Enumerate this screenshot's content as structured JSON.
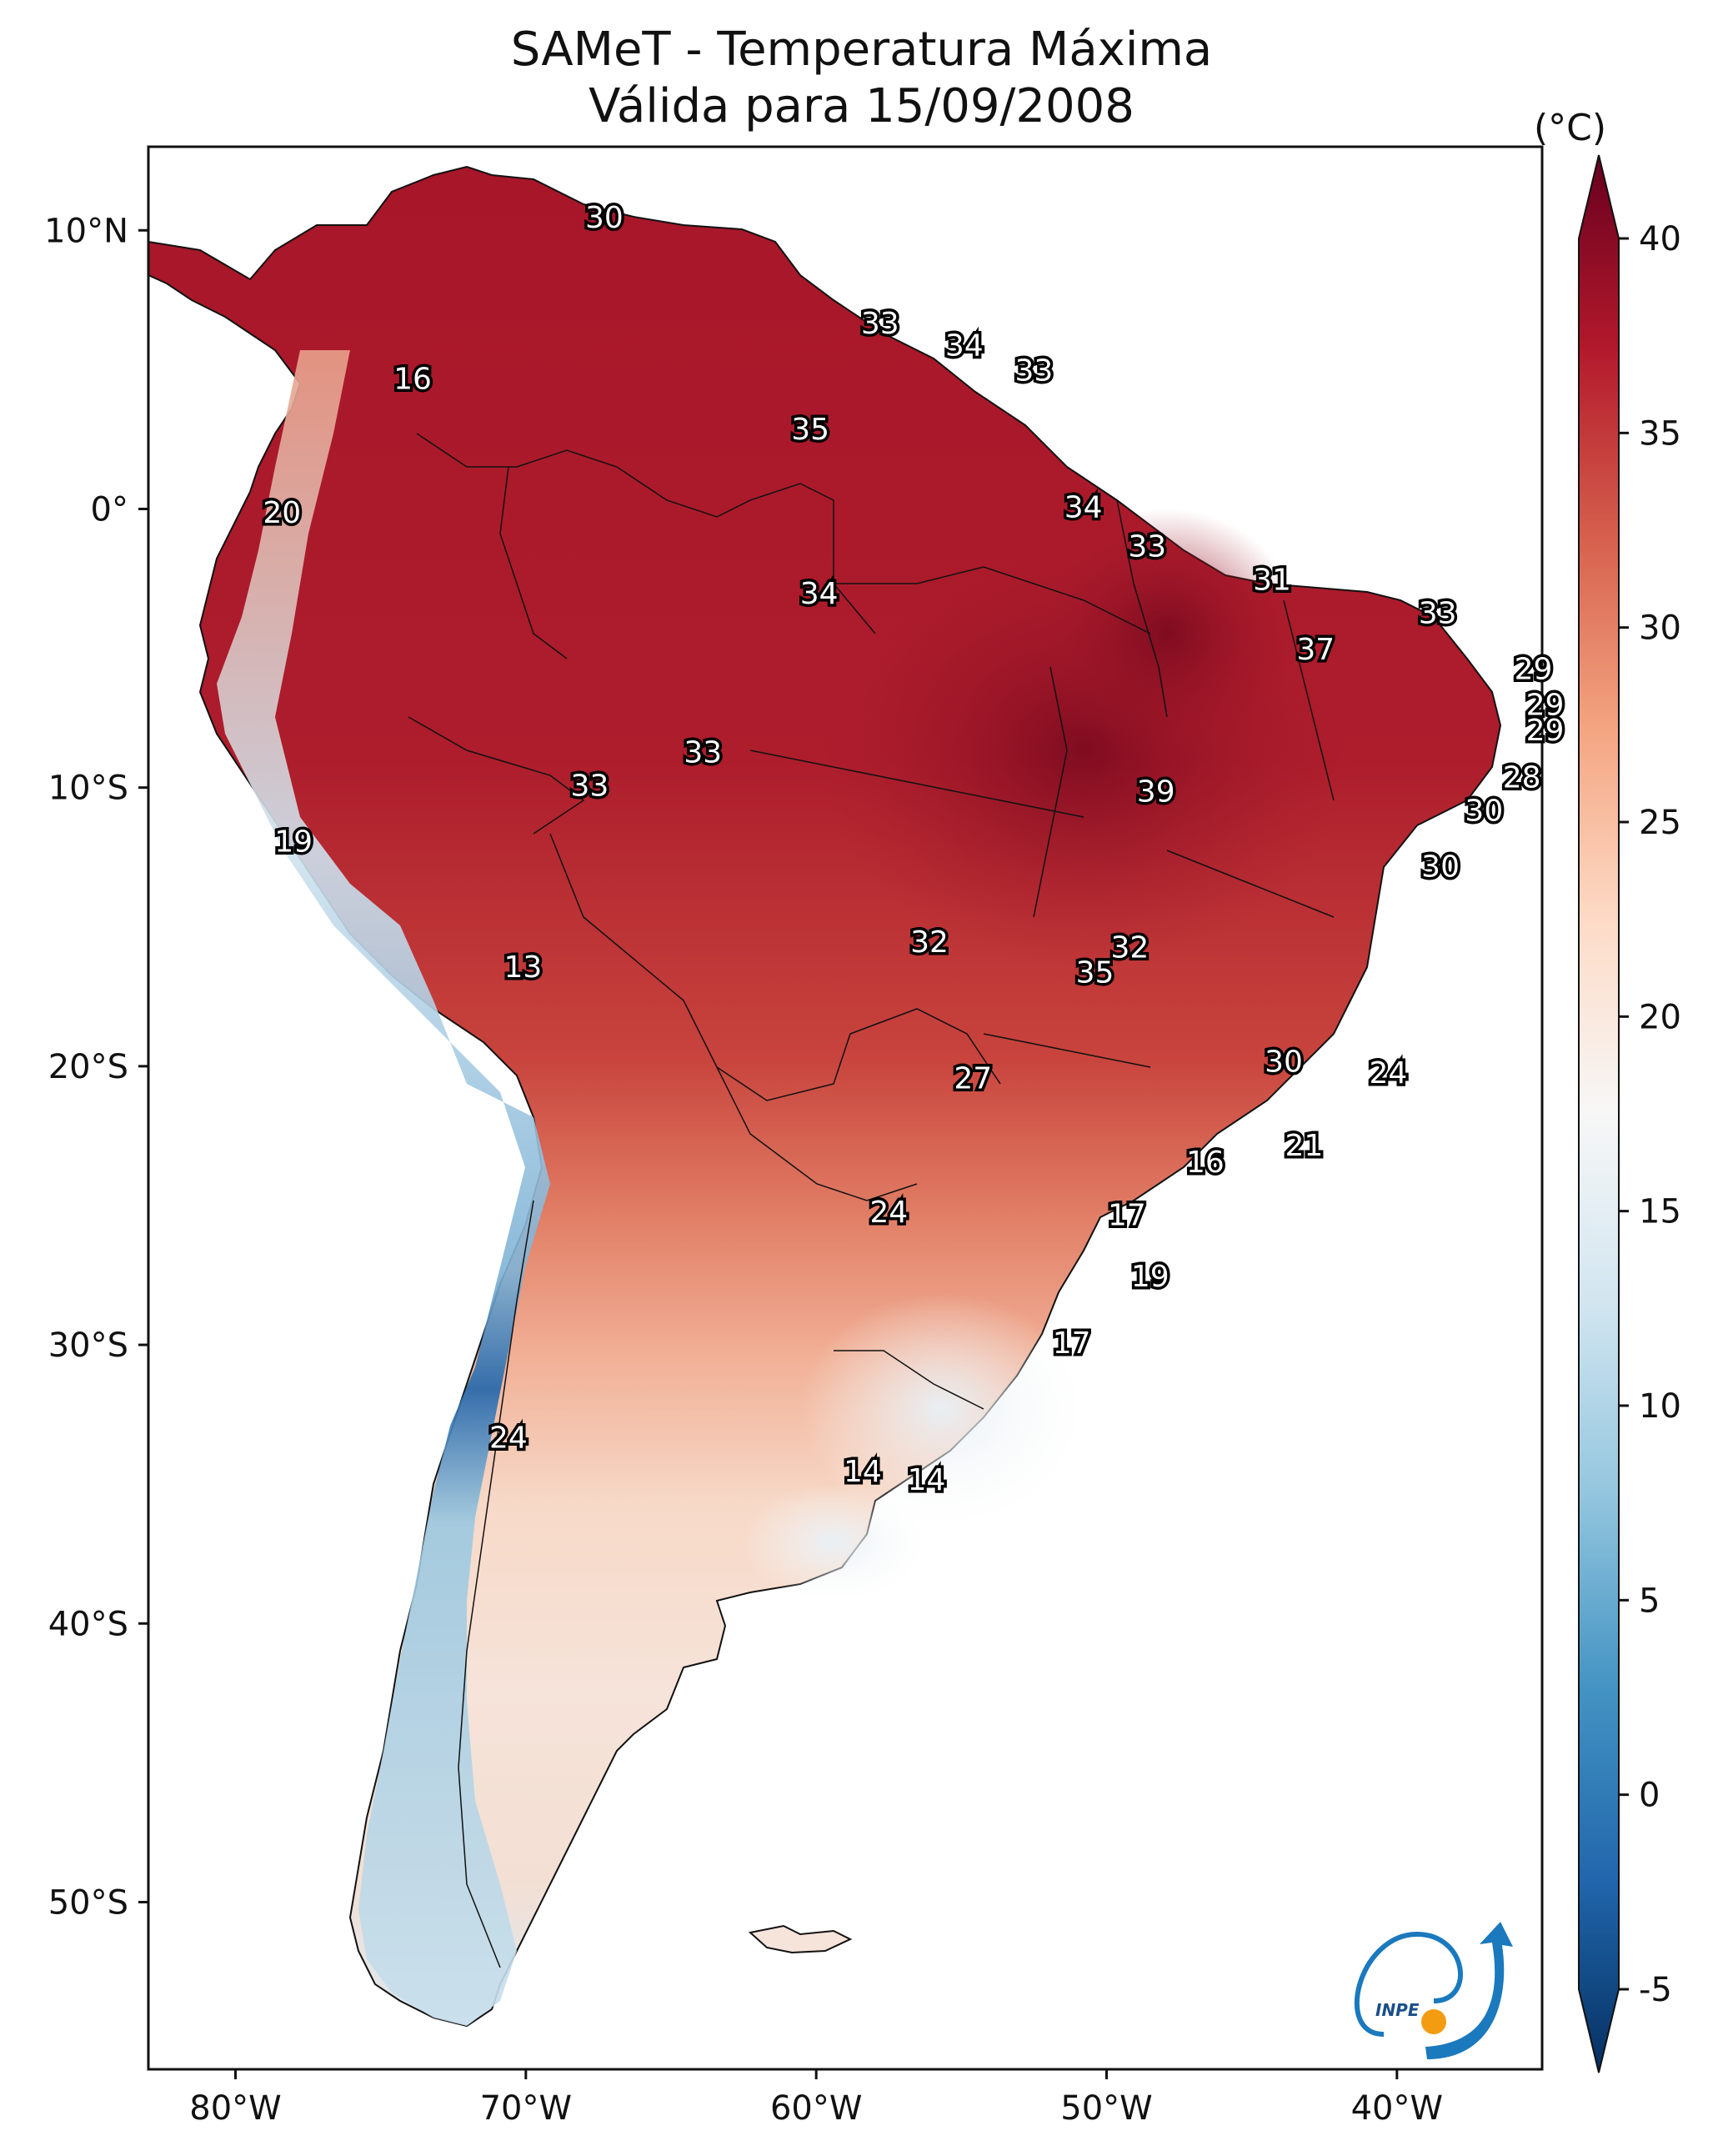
{
  "title": {
    "line1": "SAMeT - Temperatura Máxima",
    "line2": "Válida para 15/09/2008"
  },
  "axes": {
    "lon_labels": [
      "80°W",
      "70°W",
      "60°W",
      "50°W",
      "40°W"
    ],
    "lat_labels": [
      "10°N",
      "0°",
      "10°S",
      "20°S",
      "30°S",
      "40°S",
      "50°S"
    ]
  },
  "colorbar": {
    "unit": "(°C)",
    "ticks": [
      "40",
      "35",
      "30",
      "25",
      "20",
      "15",
      "10",
      "5",
      "0",
      "-5"
    ],
    "colors": [
      "#67001f",
      "#b2182b",
      "#d6604d",
      "#f4a582",
      "#fddbc7",
      "#f7f7f7",
      "#d1e5f0",
      "#92c5de",
      "#4393c3",
      "#2166ac",
      "#053061"
    ]
  },
  "station_values": [
    {
      "lon": -67.3,
      "lat": 10.4,
      "text": "30"
    },
    {
      "lon": -57.8,
      "lat": 6.6,
      "text": "33"
    },
    {
      "lon": -54.9,
      "lat": 5.8,
      "text": "34"
    },
    {
      "lon": -52.5,
      "lat": 4.9,
      "text": "33"
    },
    {
      "lon": -60.2,
      "lat": 2.8,
      "text": "35"
    },
    {
      "lon": -73.9,
      "lat": 4.6,
      "text": "16"
    },
    {
      "lon": -78.4,
      "lat": -0.2,
      "text": "20"
    },
    {
      "lon": -50.8,
      "lat": 0.0,
      "text": "34"
    },
    {
      "lon": -48.6,
      "lat": -1.4,
      "text": "33"
    },
    {
      "lon": -59.9,
      "lat": -3.1,
      "text": "34"
    },
    {
      "lon": -44.3,
      "lat": -2.6,
      "text": "31"
    },
    {
      "lon": -38.6,
      "lat": -3.8,
      "text": "33"
    },
    {
      "lon": -42.8,
      "lat": -5.1,
      "text": "37"
    },
    {
      "lon": -35.3,
      "lat": -5.8,
      "text": "29"
    },
    {
      "lon": -34.9,
      "lat": -7.1,
      "text": "29"
    },
    {
      "lon": -34.9,
      "lat": -8.0,
      "text": "29"
    },
    {
      "lon": -63.9,
      "lat": -8.8,
      "text": "33"
    },
    {
      "lon": -67.8,
      "lat": -10.0,
      "text": "33"
    },
    {
      "lon": -48.3,
      "lat": -10.2,
      "text": "39"
    },
    {
      "lon": -35.7,
      "lat": -9.7,
      "text": "28"
    },
    {
      "lon": -37.0,
      "lat": -10.9,
      "text": "30"
    },
    {
      "lon": -38.5,
      "lat": -12.9,
      "text": "30"
    },
    {
      "lon": -78.0,
      "lat": -12.0,
      "text": "19"
    },
    {
      "lon": -56.1,
      "lat": -15.6,
      "text": "32"
    },
    {
      "lon": -49.2,
      "lat": -15.8,
      "text": "32"
    },
    {
      "lon": -50.4,
      "lat": -16.7,
      "text": "35"
    },
    {
      "lon": -70.1,
      "lat": -16.5,
      "text": "13"
    },
    {
      "lon": -54.6,
      "lat": -20.5,
      "text": "27"
    },
    {
      "lon": -43.9,
      "lat": -19.9,
      "text": "30"
    },
    {
      "lon": -40.3,
      "lat": -20.3,
      "text": "24"
    },
    {
      "lon": -43.2,
      "lat": -22.9,
      "text": "21"
    },
    {
      "lon": -46.6,
      "lat": -23.5,
      "text": "16"
    },
    {
      "lon": -57.5,
      "lat": -25.3,
      "text": "24"
    },
    {
      "lon": -49.3,
      "lat": -25.4,
      "text": "17"
    },
    {
      "lon": -48.5,
      "lat": -27.6,
      "text": "19"
    },
    {
      "lon": -51.2,
      "lat": -30.0,
      "text": "17"
    },
    {
      "lon": -70.6,
      "lat": -33.4,
      "text": "24"
    },
    {
      "lon": -58.4,
      "lat": -34.6,
      "text": "14"
    },
    {
      "lon": -56.2,
      "lat": -34.9,
      "text": "14"
    }
  ]
}
